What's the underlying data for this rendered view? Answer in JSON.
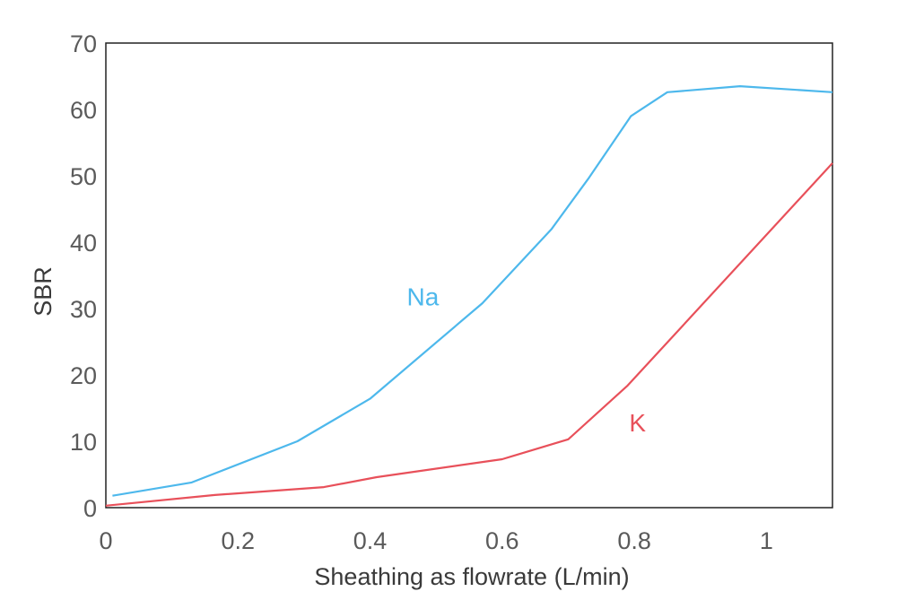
{
  "chart_data": {
    "type": "line",
    "xlabel": "Sheathing as flowrate (L/min)",
    "ylabel": "SBR",
    "xlim": [
      0,
      1.1
    ],
    "ylim": [
      0,
      70
    ],
    "xticks": [
      "0",
      "0.2",
      "0.4",
      "0.6",
      "0.8",
      "1"
    ],
    "yticks": [
      "0",
      "10",
      "20",
      "30",
      "40",
      "50",
      "60",
      "70"
    ],
    "grid": false,
    "series": [
      {
        "name": "Na",
        "color": "#4db8ec",
        "x": [
          0.01,
          0.13,
          0.29,
          0.4,
          0.57,
          0.675,
          0.73,
          0.795,
          0.85,
          0.96,
          1.1
        ],
        "y": [
          1.8,
          3.8,
          10,
          16.4,
          30.8,
          42,
          49.5,
          59,
          62.6,
          63.5,
          62.6
        ]
      },
      {
        "name": "K",
        "color": "#e8505a",
        "x": [
          0,
          0.165,
          0.33,
          0.41,
          0.6,
          0.7,
          0.79,
          1.1
        ],
        "y": [
          0.3,
          1.9,
          3.1,
          4.6,
          7.3,
          10.3,
          18.4,
          51.9
        ]
      }
    ],
    "annotations": [
      {
        "text": "Na",
        "x": 0.48,
        "y": 30.5,
        "color": "#4db8ec"
      },
      {
        "text": "K",
        "x": 0.805,
        "y": 11.5,
        "color": "#e8505a"
      }
    ]
  }
}
